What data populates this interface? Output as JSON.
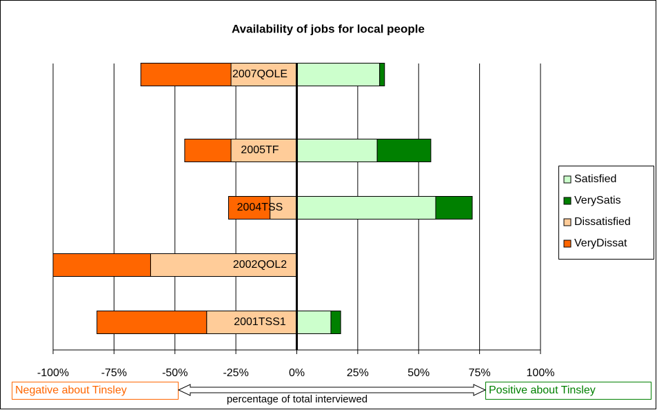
{
  "chart_data": {
    "type": "bar",
    "orientation": "horizontal",
    "stacked": "diverging",
    "title": "Availability of jobs for local people",
    "categories": [
      "2007QOLE",
      "2005TF",
      "2004TSS",
      "2002QOL2",
      "2001TSS1"
    ],
    "series": [
      {
        "name": "Satisfied",
        "color": "#ccffcc",
        "values": [
          34,
          33,
          57,
          0,
          14
        ]
      },
      {
        "name": "VerySatis",
        "color": "#008000",
        "values": [
          2,
          22,
          15,
          0,
          4
        ]
      },
      {
        "name": "Dissatisfied",
        "color": "#ffcc99",
        "values": [
          -27,
          -27,
          -11,
          -60,
          -37
        ]
      },
      {
        "name": "VeryDissat",
        "color": "#ff6600",
        "values": [
          -37,
          -19,
          -17,
          -40,
          -45
        ]
      }
    ],
    "xlim": [
      -100,
      100
    ],
    "xticks": [
      {
        "value": -100,
        "label": "-100%"
      },
      {
        "value": -75,
        "label": "-75%"
      },
      {
        "value": -50,
        "label": "-50%"
      },
      {
        "value": -25,
        "label": "-25%"
      },
      {
        "value": 0,
        "label": "0%"
      },
      {
        "value": 25,
        "label": "25%"
      },
      {
        "value": 50,
        "label": "50%"
      },
      {
        "value": 75,
        "label": "75%"
      },
      {
        "value": 100,
        "label": "100%"
      }
    ],
    "grid": true,
    "legend": "right",
    "xlabel": "percentage of total interviewed",
    "annotations": [
      "Negative about Tinsley",
      "Positive about Tinsley"
    ]
  }
}
